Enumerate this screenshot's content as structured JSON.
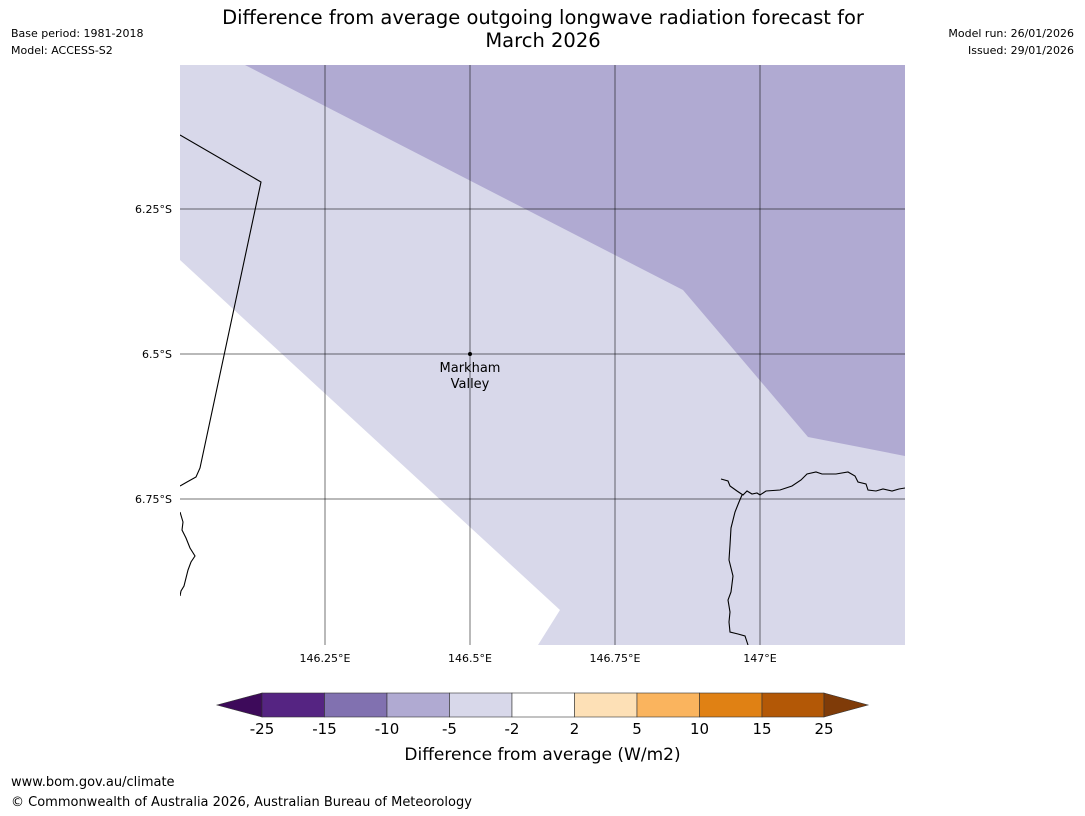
{
  "header": {
    "title_line1": "Difference from average outgoing longwave radiation forecast for",
    "title_line2": "March 2026",
    "base_period": "Base period: 1981-2018",
    "model": "Model: ACCESS-S2",
    "model_run": "Model run: 26/01/2026",
    "issued": "Issued: 29/01/2026"
  },
  "map": {
    "latitude_labels": [
      "6.25°S",
      "6.5°S",
      "6.75°S"
    ],
    "longitude_labels": [
      "146.25°E",
      "146.5°E",
      "146.75°E",
      "147°E"
    ],
    "place": {
      "name_line1": "Markham",
      "name_line2": "Valley"
    },
    "categories": [
      {
        "range": "-10 to -5",
        "color": "#b0aad2"
      },
      {
        "range": "-5 to -2",
        "color": "#d8d8ea"
      },
      {
        "range": "-2 to 2",
        "color": "#ffffff"
      }
    ]
  },
  "colorbar": {
    "ticks": [
      "-25",
      "-15",
      "-10",
      "-5",
      "-2",
      "2",
      "5",
      "10",
      "15",
      "25"
    ],
    "colors": [
      "#3d0a5a",
      "#552482",
      "#8171b0",
      "#b0aad2",
      "#d8d8ea",
      "#ffffff",
      "#fde0b6",
      "#fab45e",
      "#e08114",
      "#b35806",
      "#7f3b08"
    ],
    "label": "Difference from average (W/m2)"
  },
  "footer": {
    "url": "www.bom.gov.au/climate",
    "copyright": "© Commonwealth of Australia 2026, Australian Bureau of Meteorology"
  }
}
